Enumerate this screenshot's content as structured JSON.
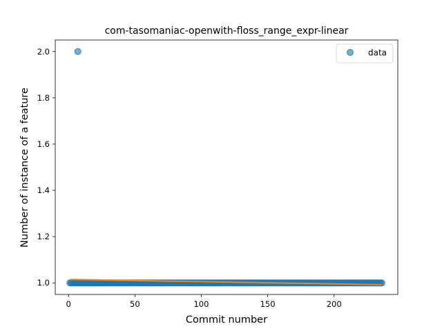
{
  "chart_data": {
    "type": "scatter",
    "title": "com-tasomaniac-openwith-floss_range_expr-linear",
    "xlabel": "Commit number",
    "ylabel": "Number of instance of a feature",
    "xlim": [
      -10,
      248
    ],
    "ylim": [
      0.95,
      2.05
    ],
    "xticks": [
      0,
      50,
      100,
      150,
      200
    ],
    "yticks": [
      1.0,
      1.2,
      1.4,
      1.6,
      1.8,
      2.0
    ],
    "ytick_labels": [
      "1.0",
      "1.2",
      "1.4",
      "1.6",
      "1.8",
      "2.0"
    ],
    "grid": false,
    "legend": {
      "position": "top-right",
      "entries": [
        "data"
      ]
    },
    "colors": {
      "data": "#1f77b4",
      "fit": "#ff7f0e"
    },
    "series": [
      {
        "name": "data",
        "kind": "points",
        "x_range": [
          1,
          236
        ],
        "y_constant": 1.0,
        "outliers": [
          {
            "x": 7,
            "y": 2.0
          }
        ]
      },
      {
        "kind": "line",
        "x": [
          1,
          236
        ],
        "y": [
          1.015,
          0.992
        ]
      }
    ]
  }
}
